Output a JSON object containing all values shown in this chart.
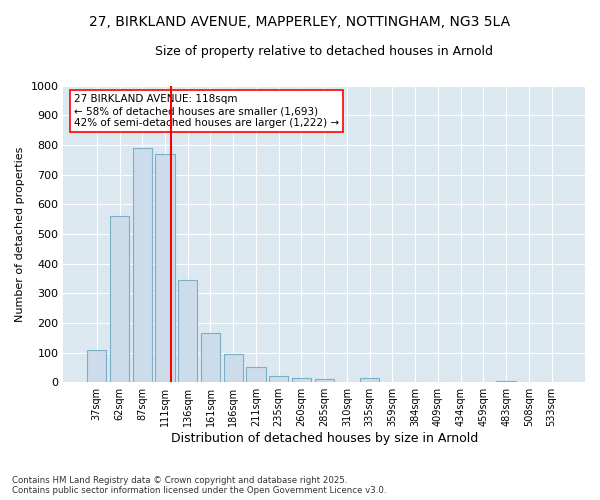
{
  "title_line1": "27, BIRKLAND AVENUE, MAPPERLEY, NOTTINGHAM, NG3 5LA",
  "title_line2": "Size of property relative to detached houses in Arnold",
  "xlabel": "Distribution of detached houses by size in Arnold",
  "ylabel": "Number of detached properties",
  "categories": [
    "37sqm",
    "62sqm",
    "87sqm",
    "111sqm",
    "136sqm",
    "161sqm",
    "186sqm",
    "211sqm",
    "235sqm",
    "260sqm",
    "285sqm",
    "310sqm",
    "335sqm",
    "359sqm",
    "384sqm",
    "409sqm",
    "434sqm",
    "459sqm",
    "483sqm",
    "508sqm",
    "533sqm"
  ],
  "values": [
    110,
    560,
    790,
    770,
    345,
    165,
    95,
    50,
    20,
    15,
    12,
    0,
    15,
    0,
    0,
    0,
    0,
    0,
    5,
    0,
    0
  ],
  "bar_color": "#ccdcea",
  "bar_edge_color": "#7aafc8",
  "vline_color": "red",
  "annotation_text": "27 BIRKLAND AVENUE: 118sqm\n← 58% of detached houses are smaller (1,693)\n42% of semi-detached houses are larger (1,222) →",
  "annotation_box_color": "white",
  "annotation_box_edge_color": "red",
  "ylim": [
    0,
    1000
  ],
  "yticks": [
    0,
    100,
    200,
    300,
    400,
    500,
    600,
    700,
    800,
    900,
    1000
  ],
  "plot_bg_color": "#dce8f0",
  "footer_line1": "Contains HM Land Registry data © Crown copyright and database right 2025.",
  "footer_line2": "Contains public sector information licensed under the Open Government Licence v3.0.",
  "title_fontsize": 10,
  "subtitle_fontsize": 9,
  "bar_width": 0.85
}
